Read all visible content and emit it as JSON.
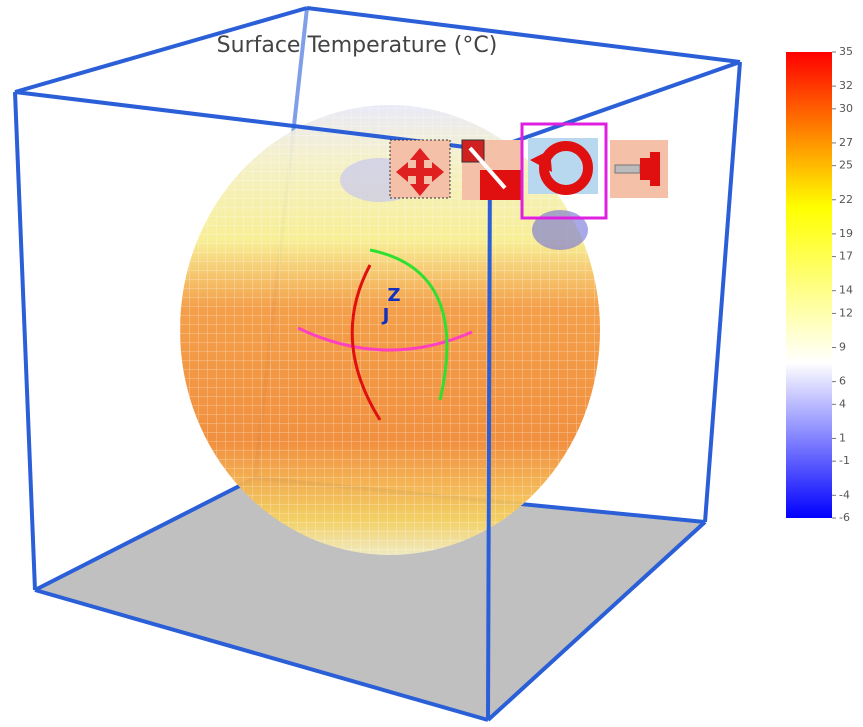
{
  "chart_data": {
    "type": "globe-surface",
    "title": "Surface Temperature (°C)",
    "axis_labels": [
      "Z",
      "J"
    ],
    "colorbar": {
      "ylim": [
        -6,
        35
      ],
      "yticks": [
        35,
        32,
        30,
        27,
        25,
        22,
        19,
        17,
        14,
        12,
        9,
        6,
        4,
        1,
        -1,
        -4,
        -6
      ],
      "colormap": [
        "#0000ff",
        "#ffffff",
        "#ffff00",
        "#ff0000"
      ]
    },
    "box_color": "#2a5fd8",
    "floor_color": "#c0c0c0"
  }
}
